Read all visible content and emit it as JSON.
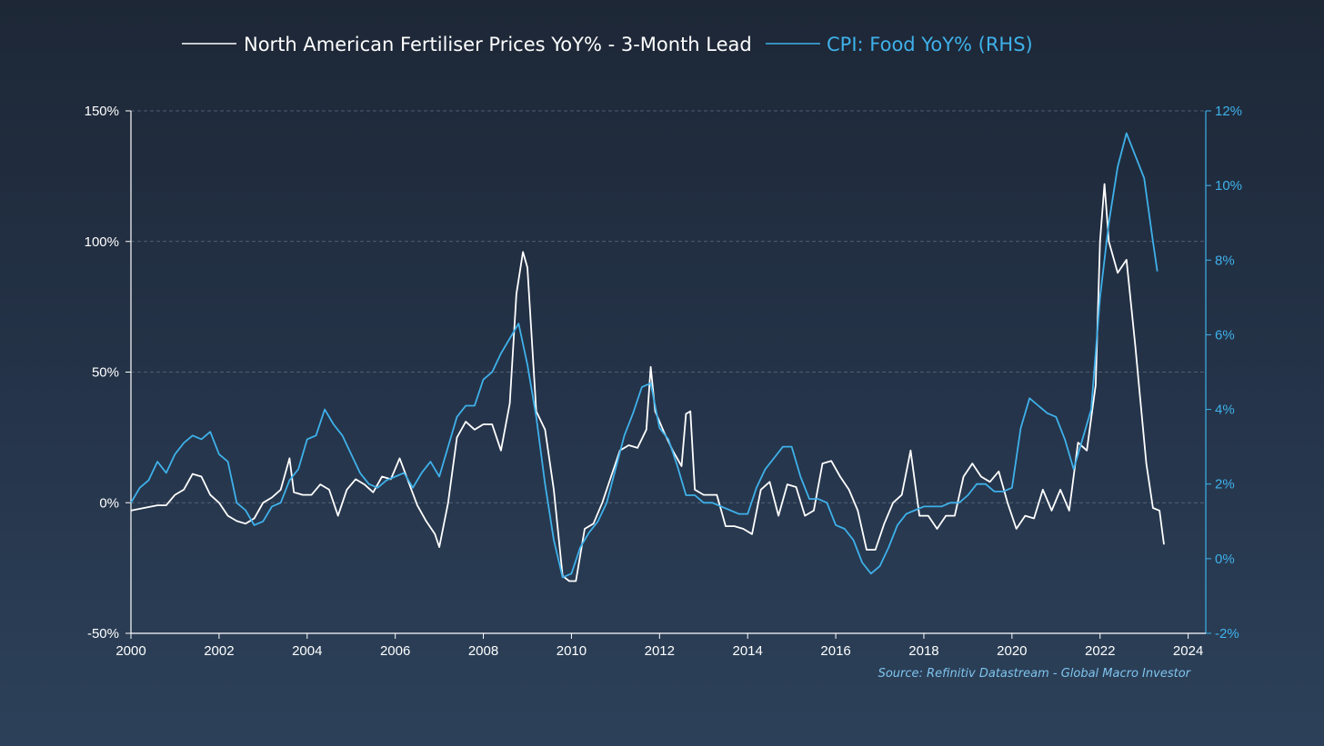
{
  "chart_data": {
    "type": "line",
    "title": "",
    "legend": {
      "placement": "top-center",
      "entries": [
        "North American Fertiliser Prices YoY% - 3-Month Lead",
        "CPI: Food YoY% (RHS)"
      ]
    },
    "x_axis": {
      "range": [
        2000,
        2024.4
      ],
      "ticks": [
        "2000",
        "2002",
        "2004",
        "2006",
        "2008",
        "2010",
        "2012",
        "2014",
        "2016",
        "2018",
        "2020",
        "2022",
        "2024"
      ]
    },
    "y_left": {
      "range": [
        -50,
        150
      ],
      "ticks": [
        "150%",
        "100%",
        "50%",
        "0%",
        "-50%"
      ],
      "grid": [
        150,
        100,
        50,
        0
      ]
    },
    "y_right": {
      "range": [
        -2,
        12
      ],
      "ticks": [
        "12%",
        "10%",
        "8%",
        "6%",
        "4%",
        "2%",
        "0%",
        "-2%"
      ]
    },
    "series": [
      {
        "name": "North American Fertiliser Prices YoY% - 3-Month Lead",
        "axis": "left",
        "color": "#ffffff",
        "points": [
          [
            2000.0,
            -3
          ],
          [
            2000.3,
            -2
          ],
          [
            2000.6,
            -1
          ],
          [
            2000.8,
            -1
          ],
          [
            2001.0,
            3
          ],
          [
            2001.2,
            5
          ],
          [
            2001.4,
            11
          ],
          [
            2001.6,
            10
          ],
          [
            2001.8,
            3
          ],
          [
            2002.0,
            0
          ],
          [
            2002.2,
            -5
          ],
          [
            2002.4,
            -7
          ],
          [
            2002.6,
            -8
          ],
          [
            2002.8,
            -6
          ],
          [
            2003.0,
            0
          ],
          [
            2003.2,
            2
          ],
          [
            2003.4,
            5
          ],
          [
            2003.6,
            17
          ],
          [
            2003.7,
            4
          ],
          [
            2003.9,
            3
          ],
          [
            2004.1,
            3
          ],
          [
            2004.3,
            7
          ],
          [
            2004.5,
            5
          ],
          [
            2004.7,
            -5
          ],
          [
            2004.9,
            5
          ],
          [
            2005.1,
            9
          ],
          [
            2005.3,
            7
          ],
          [
            2005.5,
            4
          ],
          [
            2005.7,
            10
          ],
          [
            2005.9,
            9
          ],
          [
            2006.1,
            17
          ],
          [
            2006.3,
            8
          ],
          [
            2006.5,
            -1
          ],
          [
            2006.7,
            -7
          ],
          [
            2006.9,
            -12
          ],
          [
            2007.0,
            -17
          ],
          [
            2007.2,
            0
          ],
          [
            2007.4,
            25
          ],
          [
            2007.6,
            31
          ],
          [
            2007.8,
            28
          ],
          [
            2008.0,
            30
          ],
          [
            2008.2,
            30
          ],
          [
            2008.4,
            20
          ],
          [
            2008.6,
            38
          ],
          [
            2008.75,
            80
          ],
          [
            2008.9,
            96
          ],
          [
            2009.0,
            90
          ],
          [
            2009.2,
            35
          ],
          [
            2009.4,
            28
          ],
          [
            2009.6,
            5
          ],
          [
            2009.8,
            -28
          ],
          [
            2009.95,
            -30
          ],
          [
            2010.1,
            -30
          ],
          [
            2010.3,
            -10
          ],
          [
            2010.5,
            -8
          ],
          [
            2010.7,
            0
          ],
          [
            2010.9,
            10
          ],
          [
            2011.1,
            20
          ],
          [
            2011.3,
            22
          ],
          [
            2011.5,
            21
          ],
          [
            2011.7,
            28
          ],
          [
            2011.8,
            52
          ],
          [
            2011.9,
            35
          ],
          [
            2012.1,
            27
          ],
          [
            2012.3,
            20
          ],
          [
            2012.5,
            14
          ],
          [
            2012.6,
            34
          ],
          [
            2012.7,
            35
          ],
          [
            2012.8,
            5
          ],
          [
            2013.0,
            3
          ],
          [
            2013.3,
            3
          ],
          [
            2013.5,
            -9
          ],
          [
            2013.7,
            -9
          ],
          [
            2013.9,
            -10
          ],
          [
            2014.1,
            -12
          ],
          [
            2014.3,
            5
          ],
          [
            2014.5,
            8
          ],
          [
            2014.7,
            -5
          ],
          [
            2014.9,
            7
          ],
          [
            2015.1,
            6
          ],
          [
            2015.3,
            -5
          ],
          [
            2015.5,
            -3
          ],
          [
            2015.7,
            15
          ],
          [
            2015.9,
            16
          ],
          [
            2016.1,
            10
          ],
          [
            2016.3,
            5
          ],
          [
            2016.5,
            -3
          ],
          [
            2016.7,
            -18
          ],
          [
            2016.9,
            -18
          ],
          [
            2017.1,
            -8
          ],
          [
            2017.3,
            0
          ],
          [
            2017.5,
            3
          ],
          [
            2017.7,
            20
          ],
          [
            2017.9,
            -5
          ],
          [
            2018.1,
            -5
          ],
          [
            2018.3,
            -10
          ],
          [
            2018.5,
            -5
          ],
          [
            2018.7,
            -5
          ],
          [
            2018.9,
            10
          ],
          [
            2019.1,
            15
          ],
          [
            2019.3,
            10
          ],
          [
            2019.5,
            8
          ],
          [
            2019.7,
            12
          ],
          [
            2019.9,
            0
          ],
          [
            2020.1,
            -10
          ],
          [
            2020.3,
            -5
          ],
          [
            2020.5,
            -6
          ],
          [
            2020.7,
            5
          ],
          [
            2020.9,
            -3
          ],
          [
            2021.1,
            5
          ],
          [
            2021.3,
            -3
          ],
          [
            2021.5,
            23
          ],
          [
            2021.7,
            20
          ],
          [
            2021.9,
            45
          ],
          [
            2022.0,
            100
          ],
          [
            2022.1,
            122
          ],
          [
            2022.2,
            100
          ],
          [
            2022.4,
            88
          ],
          [
            2022.6,
            93
          ],
          [
            2022.8,
            60
          ],
          [
            2022.9,
            42
          ],
          [
            2023.05,
            15
          ],
          [
            2023.2,
            -2
          ],
          [
            2023.35,
            -3
          ],
          [
            2023.45,
            -16
          ]
        ]
      },
      {
        "name": "CPI: Food YoY% (RHS)",
        "axis": "right",
        "color": "#3fb1ea",
        "points": [
          [
            2000.0,
            1.5
          ],
          [
            2000.2,
            1.9
          ],
          [
            2000.4,
            2.1
          ],
          [
            2000.6,
            2.6
          ],
          [
            2000.8,
            2.3
          ],
          [
            2001.0,
            2.8
          ],
          [
            2001.2,
            3.1
          ],
          [
            2001.4,
            3.3
          ],
          [
            2001.6,
            3.2
          ],
          [
            2001.8,
            3.4
          ],
          [
            2002.0,
            2.8
          ],
          [
            2002.2,
            2.6
          ],
          [
            2002.4,
            1.5
          ],
          [
            2002.6,
            1.3
          ],
          [
            2002.8,
            0.9
          ],
          [
            2003.0,
            1.0
          ],
          [
            2003.2,
            1.4
          ],
          [
            2003.4,
            1.5
          ],
          [
            2003.6,
            2.1
          ],
          [
            2003.8,
            2.4
          ],
          [
            2004.0,
            3.2
          ],
          [
            2004.2,
            3.3
          ],
          [
            2004.4,
            4.0
          ],
          [
            2004.6,
            3.6
          ],
          [
            2004.8,
            3.3
          ],
          [
            2005.0,
            2.8
          ],
          [
            2005.2,
            2.3
          ],
          [
            2005.4,
            2.0
          ],
          [
            2005.6,
            1.9
          ],
          [
            2005.8,
            2.1
          ],
          [
            2006.0,
            2.2
          ],
          [
            2006.2,
            2.3
          ],
          [
            2006.4,
            1.9
          ],
          [
            2006.6,
            2.3
          ],
          [
            2006.8,
            2.6
          ],
          [
            2007.0,
            2.2
          ],
          [
            2007.2,
            3.0
          ],
          [
            2007.4,
            3.8
          ],
          [
            2007.6,
            4.1
          ],
          [
            2007.8,
            4.1
          ],
          [
            2008.0,
            4.8
          ],
          [
            2008.2,
            5.0
          ],
          [
            2008.4,
            5.5
          ],
          [
            2008.6,
            5.9
          ],
          [
            2008.8,
            6.3
          ],
          [
            2009.0,
            5.2
          ],
          [
            2009.2,
            3.8
          ],
          [
            2009.4,
            2.0
          ],
          [
            2009.6,
            0.5
          ],
          [
            2009.8,
            -0.5
          ],
          [
            2010.0,
            -0.4
          ],
          [
            2010.2,
            0.3
          ],
          [
            2010.4,
            0.7
          ],
          [
            2010.6,
            1.0
          ],
          [
            2010.8,
            1.5
          ],
          [
            2011.0,
            2.4
          ],
          [
            2011.2,
            3.3
          ],
          [
            2011.4,
            3.9
          ],
          [
            2011.6,
            4.6
          ],
          [
            2011.8,
            4.7
          ],
          [
            2012.0,
            3.5
          ],
          [
            2012.2,
            3.2
          ],
          [
            2012.4,
            2.5
          ],
          [
            2012.6,
            1.7
          ],
          [
            2012.8,
            1.7
          ],
          [
            2013.0,
            1.5
          ],
          [
            2013.2,
            1.5
          ],
          [
            2013.4,
            1.4
          ],
          [
            2013.6,
            1.3
          ],
          [
            2013.8,
            1.2
          ],
          [
            2014.0,
            1.2
          ],
          [
            2014.2,
            1.9
          ],
          [
            2014.4,
            2.4
          ],
          [
            2014.6,
            2.7
          ],
          [
            2014.8,
            3.0
          ],
          [
            2015.0,
            3.0
          ],
          [
            2015.2,
            2.2
          ],
          [
            2015.4,
            1.6
          ],
          [
            2015.6,
            1.6
          ],
          [
            2015.8,
            1.5
          ],
          [
            2016.0,
            0.9
          ],
          [
            2016.2,
            0.8
          ],
          [
            2016.4,
            0.5
          ],
          [
            2016.6,
            -0.1
          ],
          [
            2016.8,
            -0.4
          ],
          [
            2017.0,
            -0.2
          ],
          [
            2017.2,
            0.3
          ],
          [
            2017.4,
            0.9
          ],
          [
            2017.6,
            1.2
          ],
          [
            2017.8,
            1.3
          ],
          [
            2018.0,
            1.4
          ],
          [
            2018.2,
            1.4
          ],
          [
            2018.4,
            1.4
          ],
          [
            2018.6,
            1.5
          ],
          [
            2018.8,
            1.5
          ],
          [
            2019.0,
            1.7
          ],
          [
            2019.2,
            2.0
          ],
          [
            2019.4,
            2.0
          ],
          [
            2019.6,
            1.8
          ],
          [
            2019.8,
            1.8
          ],
          [
            2020.0,
            1.9
          ],
          [
            2020.2,
            3.5
          ],
          [
            2020.4,
            4.3
          ],
          [
            2020.6,
            4.1
          ],
          [
            2020.8,
            3.9
          ],
          [
            2021.0,
            3.8
          ],
          [
            2021.2,
            3.2
          ],
          [
            2021.4,
            2.4
          ],
          [
            2021.6,
            3.2
          ],
          [
            2021.8,
            4.0
          ],
          [
            2022.0,
            7.0
          ],
          [
            2022.2,
            9.0
          ],
          [
            2022.4,
            10.5
          ],
          [
            2022.6,
            11.4
          ],
          [
            2022.8,
            10.8
          ],
          [
            2023.0,
            10.2
          ],
          [
            2023.2,
            8.5
          ],
          [
            2023.3,
            7.7
          ]
        ]
      }
    ],
    "source": "Source: Refinitiv Datastream - Global Macro Investor"
  }
}
